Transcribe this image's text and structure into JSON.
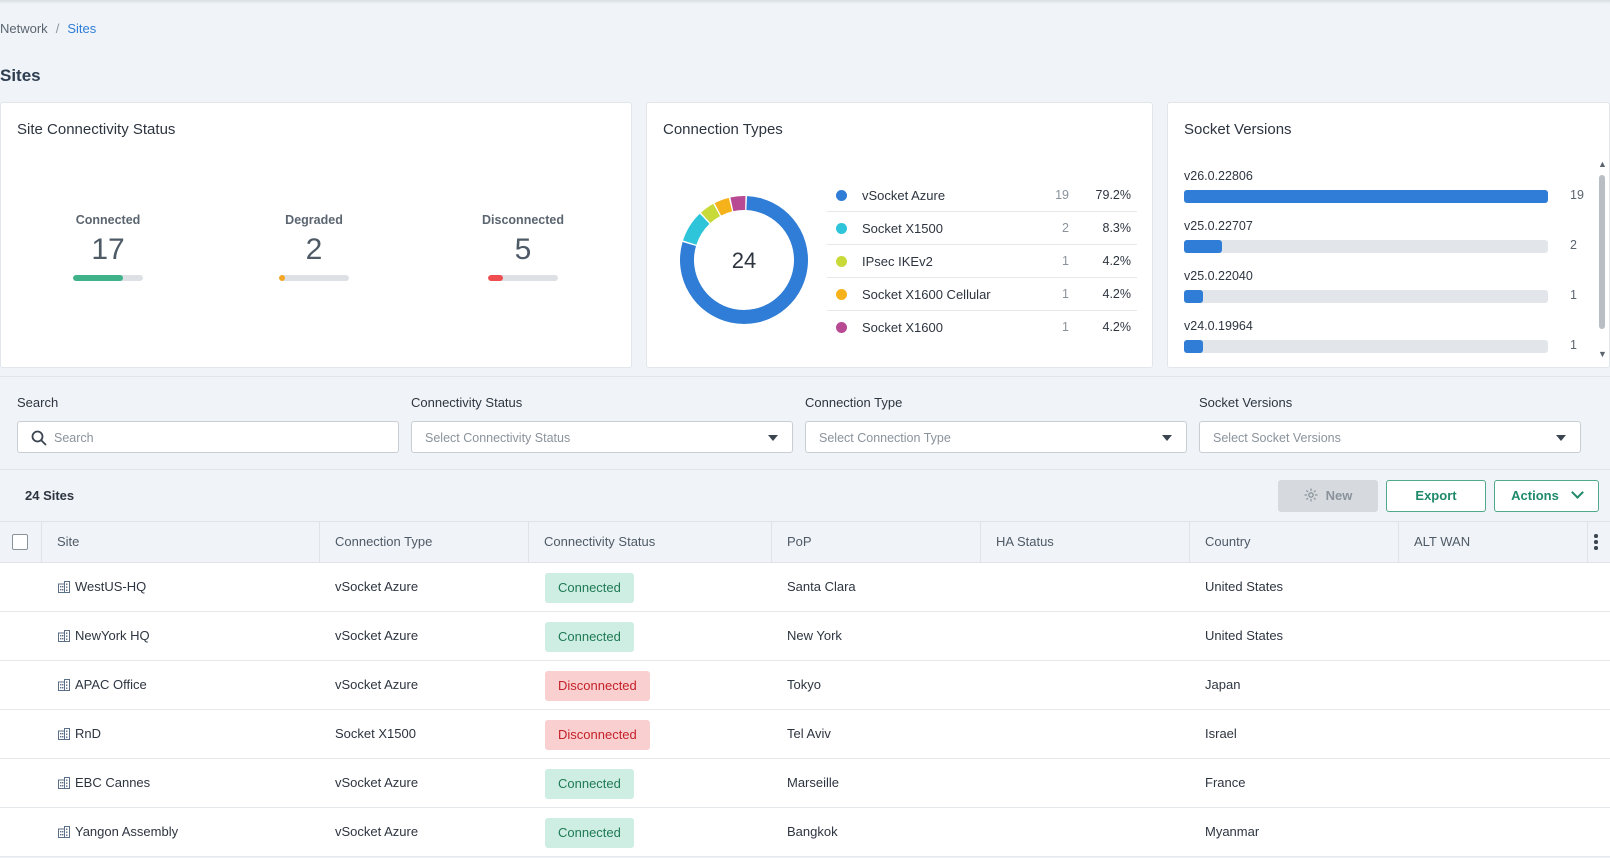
{
  "breadcrumb": {
    "parent": "Network",
    "separator": "/",
    "current": "Sites"
  },
  "page_title": "Sites",
  "status_card": {
    "title": "Site Connectivity Status",
    "items": [
      {
        "label": "Connected",
        "value": "17",
        "fraction": 0.71,
        "color": "#3fb28a"
      },
      {
        "label": "Degraded",
        "value": "2",
        "fraction": 0.08,
        "color": "#f5a623"
      },
      {
        "label": "Disconnected",
        "value": "5",
        "fraction": 0.21,
        "color": "#ef4d4f"
      }
    ]
  },
  "types_card": {
    "title": "Connection Types",
    "total": "24",
    "items": [
      {
        "name": "vSocket Azure",
        "count": "19",
        "pct": "79.2%",
        "value": 19,
        "color": "#2f7dd6"
      },
      {
        "name": "Socket X1500",
        "count": "2",
        "pct": "8.3%",
        "value": 2,
        "color": "#2ec4d9"
      },
      {
        "name": "IPsec IKEv2",
        "count": "1",
        "pct": "4.2%",
        "value": 1,
        "color": "#c8d93a"
      },
      {
        "name": "Socket X1600 Cellular",
        "count": "1",
        "pct": "4.2%",
        "value": 1,
        "color": "#f5b21b"
      },
      {
        "name": "Socket X1600",
        "count": "1",
        "pct": "4.2%",
        "value": 1,
        "color": "#b84a93"
      }
    ]
  },
  "versions_card": {
    "title": "Socket Versions",
    "items": [
      {
        "version": "v26.0.22806",
        "count": "19",
        "value": 19
      },
      {
        "version": "v25.0.22707",
        "count": "2",
        "value": 2
      },
      {
        "version": "v25.0.22040",
        "count": "1",
        "value": 1
      },
      {
        "version": "v24.0.19964",
        "count": "1",
        "value": 1
      }
    ],
    "max": 19
  },
  "filters": {
    "search": {
      "label": "Search",
      "placeholder": "Search"
    },
    "connectivity": {
      "label": "Connectivity Status",
      "placeholder": "Select Connectivity Status"
    },
    "conn_type": {
      "label": "Connection Type",
      "placeholder": "Select Connection Type"
    },
    "versions": {
      "label": "Socket Versions",
      "placeholder": "Select Socket Versions"
    }
  },
  "table_bar": {
    "count": "24 Sites",
    "new_label": "New",
    "export_label": "Export",
    "actions_label": "Actions"
  },
  "table": {
    "columns": [
      "Site",
      "Connection Type",
      "Connectivity Status",
      "PoP",
      "HA Status",
      "Country",
      "ALT WAN"
    ],
    "rows": [
      {
        "site": "WestUS-HQ",
        "type": "vSocket Azure",
        "status": "Connected",
        "ok": true,
        "pop": "Santa Clara",
        "ha": "",
        "country": "United States",
        "altwan": ""
      },
      {
        "site": "NewYork HQ",
        "type": "vSocket Azure",
        "status": "Connected",
        "ok": true,
        "pop": "New York",
        "ha": "",
        "country": "United States",
        "altwan": ""
      },
      {
        "site": "APAC Office",
        "type": "vSocket Azure",
        "status": "Disconnected",
        "ok": false,
        "pop": "Tokyo",
        "ha": "",
        "country": "Japan",
        "altwan": ""
      },
      {
        "site": "RnD",
        "type": "Socket X1500",
        "status": "Disconnected",
        "ok": false,
        "pop": "Tel Aviv",
        "ha": "",
        "country": "Israel",
        "altwan": ""
      },
      {
        "site": "EBC Cannes",
        "type": "vSocket Azure",
        "status": "Connected",
        "ok": true,
        "pop": "Marseille",
        "ha": "",
        "country": "France",
        "altwan": ""
      },
      {
        "site": "Yangon Assembly",
        "type": "vSocket Azure",
        "status": "Connected",
        "ok": true,
        "pop": "Bangkok",
        "ha": "",
        "country": "Myanmar",
        "altwan": ""
      }
    ]
  },
  "icons": {
    "search": "search-icon",
    "building": "building-icon",
    "new": "sparkle-icon",
    "kebab": "kebab-menu-icon"
  }
}
